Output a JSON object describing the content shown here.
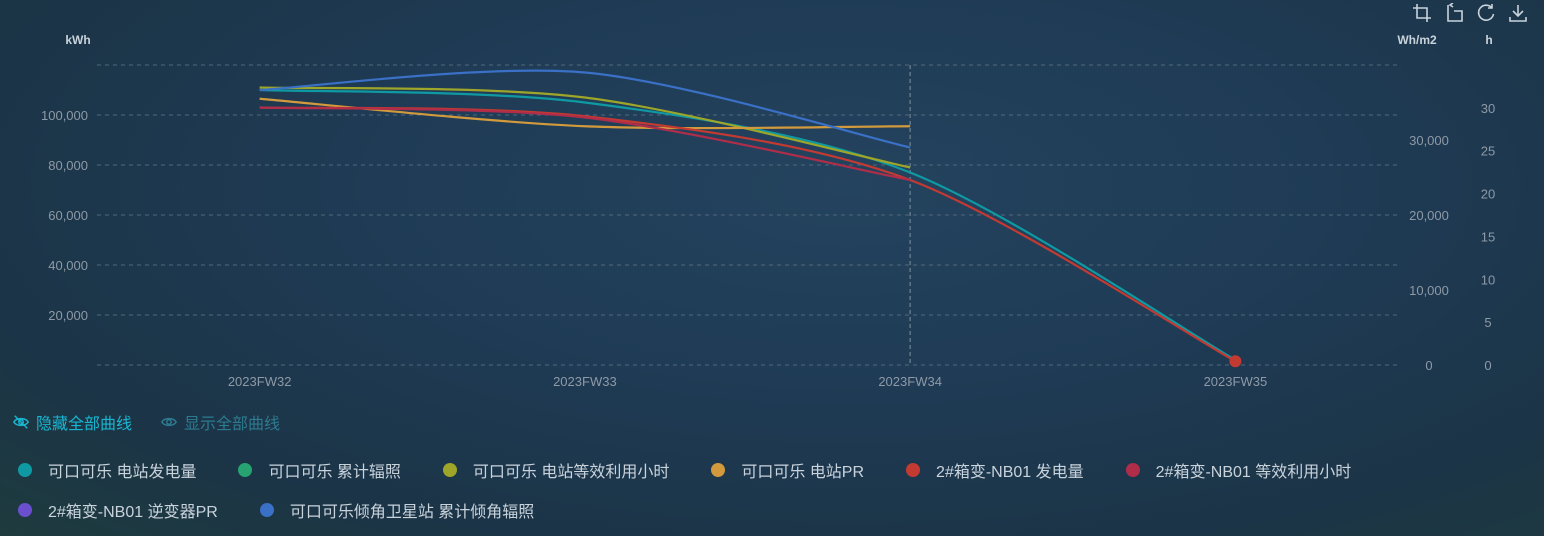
{
  "toolbox": {
    "icons": [
      "zoom-area-icon",
      "zoom-reset-icon",
      "restore-icon",
      "download-icon"
    ]
  },
  "toggles": {
    "hide_all": "隐藏全部曲线",
    "show_all": "显示全部曲线"
  },
  "chart_data": {
    "type": "line",
    "smooth": true,
    "categories": [
      "2023FW32",
      "2023FW33",
      "2023FW34",
      "2023FW35"
    ],
    "axis_pointer_category": "2023FW34",
    "grid": true,
    "legend_position": "bottom-left",
    "axes": {
      "left": {
        "unit": "kWh",
        "min": 0,
        "max": 120000,
        "ticks": [
          20000,
          40000,
          60000,
          80000,
          100000
        ],
        "tick_labels": [
          "20,000",
          "40,000",
          "60,000",
          "80,000",
          "100,000"
        ]
      },
      "right1": {
        "unit": "Wh/m2",
        "min": 0,
        "max": 40000,
        "ticks": [
          0,
          10000,
          20000,
          30000
        ],
        "tick_labels": [
          "0",
          "10,000",
          "20,000",
          "30,000"
        ]
      },
      "right2": {
        "unit": "h",
        "min": 0,
        "max": 35,
        "ticks": [
          0,
          5,
          10,
          15,
          20,
          25,
          30
        ],
        "tick_labels": [
          "0",
          "5",
          "10",
          "15",
          "20",
          "25",
          "30"
        ]
      }
    },
    "series": [
      {
        "name": "可口可乐 电站发电量",
        "color": "#0f9aa3",
        "axis": "left",
        "values": [
          110000,
          105000,
          77000,
          2000
        ]
      },
      {
        "name": "可口可乐 累计辐照",
        "color": "#27a372",
        "axis": "right1",
        "values": [
          null,
          null,
          null,
          null
        ]
      },
      {
        "name": "可口可乐 电站等效利用小时",
        "color": "#9da629",
        "axis": "left",
        "values": [
          111000,
          107000,
          79000,
          null
        ]
      },
      {
        "name": "可口可乐 电站PR",
        "color": "#d29a3c",
        "axis": "left",
        "values": [
          106500,
          95500,
          95500,
          null
        ]
      },
      {
        "name": "2#箱变-NB01 发电量",
        "color": "#c33a32",
        "axis": "left",
        "values": [
          103000,
          99500,
          74000,
          1500
        ]
      },
      {
        "name": "2#箱变-NB01 等效利用小时",
        "color": "#b02d4a",
        "axis": "left",
        "values": [
          103000,
          99000,
          74000,
          null
        ]
      },
      {
        "name": "2#箱变-NB01 逆变器PR",
        "color": "#6a4fcf",
        "axis": "left",
        "values": [
          null,
          null,
          null,
          null
        ]
      },
      {
        "name": "可口可乐倾角卫星站 累计倾角辐照",
        "color": "#3a70c6",
        "axis": "left",
        "values": [
          110000,
          117000,
          87000,
          null
        ]
      }
    ],
    "end_marker": {
      "series": "2#箱变-NB01 发电量",
      "category": "2023FW35",
      "value": 1500,
      "color": "#c33a32"
    }
  }
}
